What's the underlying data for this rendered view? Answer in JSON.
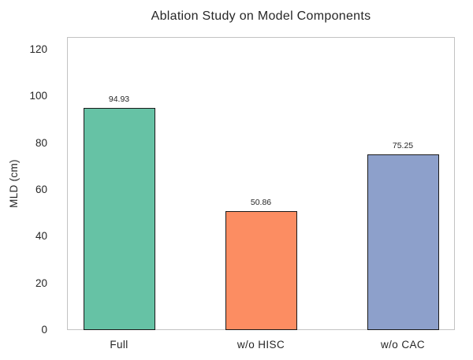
{
  "chart_data": {
    "type": "bar",
    "title": "Ablation Study on Model Components",
    "xlabel": "",
    "ylabel": "MLD (cm)",
    "categories": [
      "Full",
      "w/o HISC",
      "w/o CAC"
    ],
    "values": [
      94.93,
      50.86,
      75.25
    ],
    "value_labels": [
      "94.93",
      "50.86",
      "75.25"
    ],
    "bar_colors": [
      "#66c2a5",
      "#fc8d62",
      "#8da0cb"
    ],
    "bar_edge_color": "#1a1a1a",
    "ylim": [
      0,
      125.4
    ],
    "yticks": [
      0,
      20,
      40,
      60,
      80,
      100,
      120
    ],
    "ytick_labels": [
      "0",
      "20",
      "40",
      "60",
      "80",
      "100",
      "120"
    ],
    "grid": {
      "horizontal_style": "dashed",
      "vertical_style": "solid",
      "horizontal_color": "#dcdcdc",
      "vertical_color": "#d2d2d2"
    },
    "spine_color": "#c3c3c3",
    "background_color": "#ffffff",
    "legend_position": "none"
  }
}
